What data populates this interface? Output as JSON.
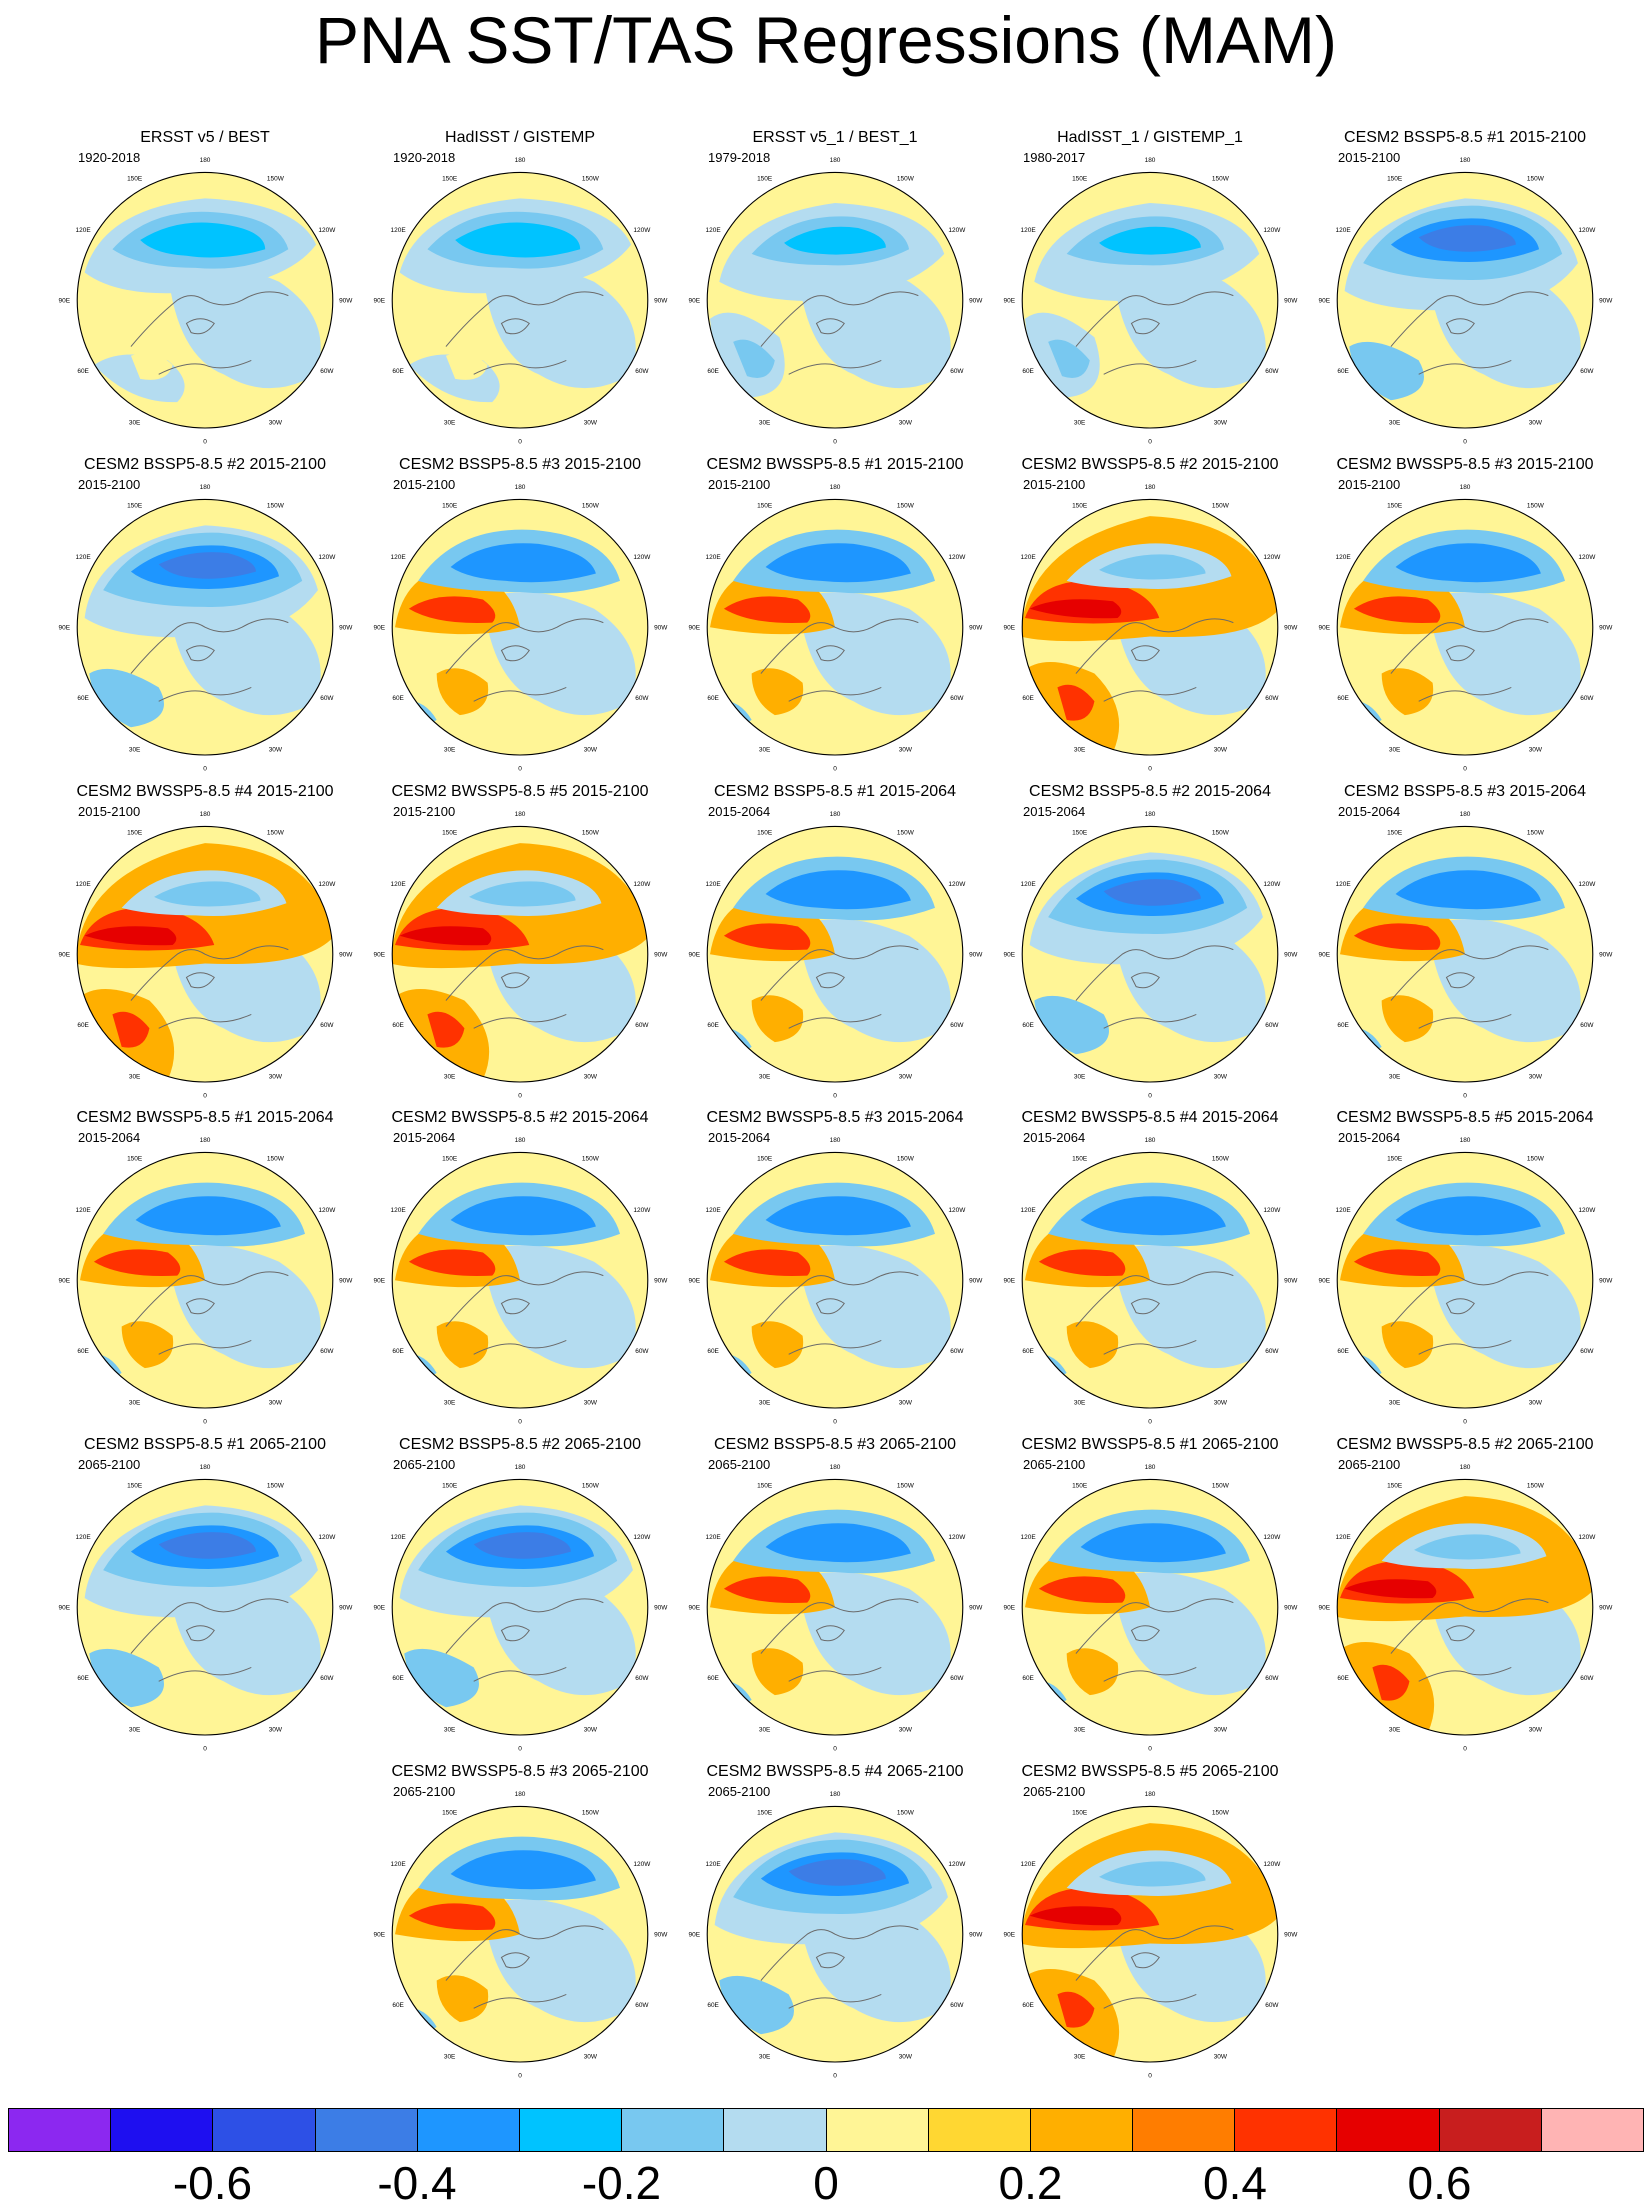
{
  "title": "PNA SST/TAS Regressions (MAM)",
  "longitude_labels": [
    "180",
    "150E",
    "120E",
    "90E",
    "60E",
    "30E",
    "0",
    "30W",
    "60W",
    "90W",
    "120W",
    "150W"
  ],
  "panels": [
    {
      "title": "ERSST v5 / BEST",
      "period": "1920-2018",
      "pattern": "obs"
    },
    {
      "title": "HadISST / GISTEMP",
      "period": "1920-2018",
      "pattern": "obs"
    },
    {
      "title": "ERSST v5_1 / BEST_1",
      "period": "1979-2018",
      "pattern": "obs2"
    },
    {
      "title": "HadISST_1 / GISTEMP_1",
      "period": "1980-2017",
      "pattern": "obs2"
    },
    {
      "title": "CESM2 BSSP5-8.5 #1 2015-2100",
      "period": "2015-2100",
      "pattern": "cool"
    },
    {
      "title": "CESM2 BSSP5-8.5 #2 2015-2100",
      "period": "2015-2100",
      "pattern": "cool"
    },
    {
      "title": "CESM2 BSSP5-8.5 #3 2015-2100",
      "period": "2015-2100",
      "pattern": "mix"
    },
    {
      "title": "CESM2 BWSSP5-8.5 #1 2015-2100",
      "period": "2015-2100",
      "pattern": "mix"
    },
    {
      "title": "CESM2 BWSSP5-8.5 #2 2015-2100",
      "period": "2015-2100",
      "pattern": "warm"
    },
    {
      "title": "CESM2 BWSSP5-8.5 #3 2015-2100",
      "period": "2015-2100",
      "pattern": "mix"
    },
    {
      "title": "CESM2 BWSSP5-8.5 #4 2015-2100",
      "period": "2015-2100",
      "pattern": "warm"
    },
    {
      "title": "CESM2 BWSSP5-8.5 #5 2015-2100",
      "period": "2015-2100",
      "pattern": "warm"
    },
    {
      "title": "CESM2 BSSP5-8.5 #1 2015-2064",
      "period": "2015-2064",
      "pattern": "mix"
    },
    {
      "title": "CESM2 BSSP5-8.5 #2 2015-2064",
      "period": "2015-2064",
      "pattern": "cool"
    },
    {
      "title": "CESM2 BSSP5-8.5 #3 2015-2064",
      "period": "2015-2064",
      "pattern": "mix"
    },
    {
      "title": "CESM2 BWSSP5-8.5 #1 2015-2064",
      "period": "2015-2064",
      "pattern": "mix"
    },
    {
      "title": "CESM2 BWSSP5-8.5 #2 2015-2064",
      "period": "2015-2064",
      "pattern": "mix"
    },
    {
      "title": "CESM2 BWSSP5-8.5 #3 2015-2064",
      "period": "2015-2064",
      "pattern": "mix"
    },
    {
      "title": "CESM2 BWSSP5-8.5 #4 2015-2064",
      "period": "2015-2064",
      "pattern": "mix"
    },
    {
      "title": "CESM2 BWSSP5-8.5 #5 2015-2064",
      "period": "2015-2064",
      "pattern": "mix"
    },
    {
      "title": "CESM2 BSSP5-8.5 #1 2065-2100",
      "period": "2065-2100",
      "pattern": "cool"
    },
    {
      "title": "CESM2 BSSP5-8.5 #2 2065-2100",
      "period": "2065-2100",
      "pattern": "cool"
    },
    {
      "title": "CESM2 BSSP5-8.5 #3 2065-2100",
      "period": "2065-2100",
      "pattern": "mix"
    },
    {
      "title": "CESM2 BWSSP5-8.5 #1 2065-2100",
      "period": "2065-2100",
      "pattern": "mix"
    },
    {
      "title": "CESM2 BWSSP5-8.5 #2 2065-2100",
      "period": "2065-2100",
      "pattern": "warm"
    },
    {
      "title": "CESM2 BWSSP5-8.5 #3 2065-2100",
      "period": "2065-2100",
      "pattern": "mix"
    },
    {
      "title": "CESM2 BWSSP5-8.5 #4 2065-2100",
      "period": "2065-2100",
      "pattern": "cool"
    },
    {
      "title": "CESM2 BWSSP5-8.5 #5 2065-2100",
      "period": "2065-2100",
      "pattern": "warm"
    }
  ],
  "colorbar": {
    "colors": [
      "#8c28f0",
      "#1e0ff0",
      "#2d50e6",
      "#3c7de6",
      "#1e96ff",
      "#00c3ff",
      "#78c8f0",
      "#b4dcf0",
      "#fff596",
      "#ffd732",
      "#ffaf00",
      "#ff7d00",
      "#ff3200",
      "#e60000",
      "#c81e1e",
      "#ffb4b4"
    ],
    "labels": [
      "-0.6",
      "-0.4",
      "-0.2",
      "0",
      "0.2",
      "0.4",
      "0.6"
    ]
  }
}
